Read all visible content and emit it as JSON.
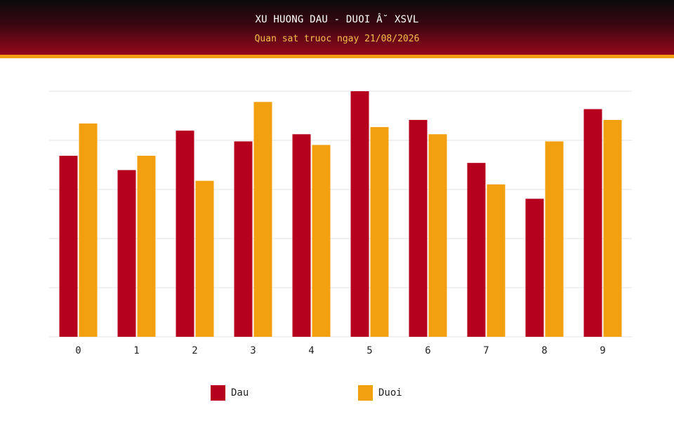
{
  "header": {
    "title": "XU HUONG DAU - DUOI Â˘ XSVL",
    "subtitle": "Quan sat truoc ngay 21/08/2026"
  },
  "colors": {
    "dau": "#b5001e",
    "duoi": "#f2a00f",
    "grid": "#e3e3e3"
  },
  "chart_data": {
    "type": "bar",
    "categories": [
      "0",
      "1",
      "2",
      "3",
      "4",
      "5",
      "6",
      "7",
      "8",
      "9"
    ],
    "series": [
      {
        "name": "Dau",
        "values": [
          10.1,
          9.3,
          11.5,
          10.9,
          11.3,
          13.7,
          12.1,
          9.7,
          7.7,
          12.7
        ]
      },
      {
        "name": "Duoi",
        "values": [
          11.9,
          10.1,
          8.7,
          13.1,
          10.7,
          11.7,
          11.3,
          8.5,
          10.9,
          12.1
        ]
      }
    ],
    "ylim": [
      0,
      13.7
    ],
    "grid": true,
    "legend": "bottom"
  }
}
